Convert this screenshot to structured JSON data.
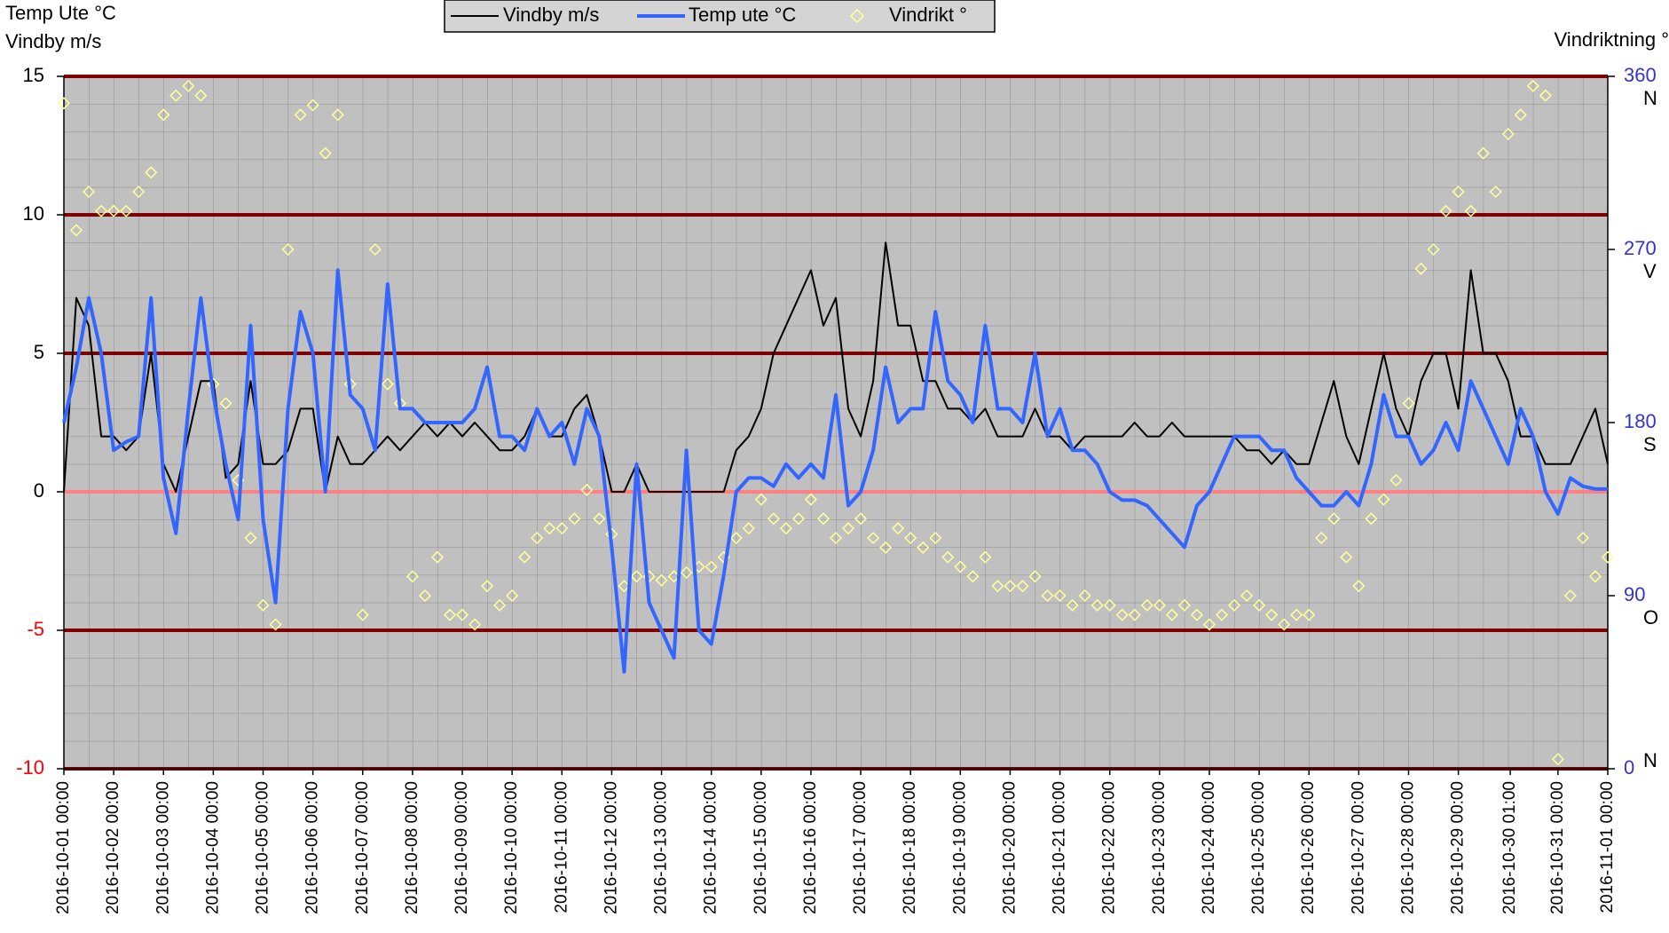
{
  "chart_data": {
    "type": "line",
    "y_axis_title_lines": [
      "Temp Ute °C",
      "Vindby m/s"
    ],
    "y2_axis_title": "Vindriktning °",
    "legend_position": "top",
    "xlim": [
      "2016-10-01 00:00",
      "2016-11-01 00:00"
    ],
    "xticks": [
      "2016-10-01 00:00",
      "2016-10-02 00:00",
      "2016-10-03 00:00",
      "2016-10-04 00:00",
      "2016-10-05 00:00",
      "2016-10-06 00:00",
      "2016-10-07 00:00",
      "2016-10-08 00:00",
      "2016-10-09 00:00",
      "2016-10-10 00:00",
      "2016-10-11 00:00",
      "2016-10-12 00:00",
      "2016-10-13 00:00",
      "2016-10-14 00:00",
      "2016-10-15 00:00",
      "2016-10-16 00:00",
      "2016-10-17 00:00",
      "2016-10-18 00:00",
      "2016-10-19 00:00",
      "2016-10-20 00:00",
      "2016-10-21 00:00",
      "2016-10-22 00:00",
      "2016-10-23 00:00",
      "2016-10-24 00:00",
      "2016-10-25 00:00",
      "2016-10-26 00:00",
      "2016-10-27 00:00",
      "2016-10-28 00:00",
      "2016-10-29 00:00",
      "2016-10-30 01:00",
      "2016-10-31 00:00",
      "2016-11-01 00:00"
    ],
    "ylim": [
      -10,
      15
    ],
    "yticks": [
      -10,
      -5,
      0,
      5,
      10,
      15
    ],
    "y2lim": [
      0,
      360
    ],
    "y2ticks": [
      0,
      90,
      180,
      270,
      360
    ],
    "y2_direction_labels": [
      {
        "value": 0,
        "label": "N"
      },
      {
        "value": 90,
        "label": "O"
      },
      {
        "value": 180,
        "label": "S"
      },
      {
        "value": 270,
        "label": "V"
      },
      {
        "value": 360,
        "label": "N"
      }
    ],
    "grid": true,
    "grid_color": "#800000",
    "zero_line_color": "#ff8080",
    "tick_color": "#000000",
    "negative_tick_color": "#ff0000",
    "y2_tick_color": "#3333cc",
    "plot_background": "#c0c0c0",
    "x": [
      "2016-10-01 00:00",
      "2016-10-01 06:00",
      "2016-10-01 12:00",
      "2016-10-01 18:00",
      "2016-10-02 00:00",
      "2016-10-02 06:00",
      "2016-10-02 12:00",
      "2016-10-02 18:00",
      "2016-10-03 00:00",
      "2016-10-03 06:00",
      "2016-10-03 12:00",
      "2016-10-03 18:00",
      "2016-10-04 00:00",
      "2016-10-04 06:00",
      "2016-10-04 12:00",
      "2016-10-04 18:00",
      "2016-10-05 00:00",
      "2016-10-05 06:00",
      "2016-10-05 12:00",
      "2016-10-05 18:00",
      "2016-10-06 00:00",
      "2016-10-06 06:00",
      "2016-10-06 12:00",
      "2016-10-06 18:00",
      "2016-10-07 00:00",
      "2016-10-07 06:00",
      "2016-10-07 12:00",
      "2016-10-07 18:00",
      "2016-10-08 00:00",
      "2016-10-08 06:00",
      "2016-10-08 12:00",
      "2016-10-08 18:00",
      "2016-10-09 00:00",
      "2016-10-09 06:00",
      "2016-10-09 12:00",
      "2016-10-09 18:00",
      "2016-10-10 00:00",
      "2016-10-10 06:00",
      "2016-10-10 12:00",
      "2016-10-10 18:00",
      "2016-10-11 00:00",
      "2016-10-11 06:00",
      "2016-10-11 12:00",
      "2016-10-11 18:00",
      "2016-10-12 00:00",
      "2016-10-12 06:00",
      "2016-10-12 12:00",
      "2016-10-12 18:00",
      "2016-10-13 00:00",
      "2016-10-13 06:00",
      "2016-10-13 12:00",
      "2016-10-13 18:00",
      "2016-10-14 00:00",
      "2016-10-14 06:00",
      "2016-10-14 12:00",
      "2016-10-14 18:00",
      "2016-10-15 00:00",
      "2016-10-15 06:00",
      "2016-10-15 12:00",
      "2016-10-15 18:00",
      "2016-10-16 00:00",
      "2016-10-16 06:00",
      "2016-10-16 12:00",
      "2016-10-16 18:00",
      "2016-10-17 00:00",
      "2016-10-17 06:00",
      "2016-10-17 12:00",
      "2016-10-17 18:00",
      "2016-10-18 00:00",
      "2016-10-18 06:00",
      "2016-10-18 12:00",
      "2016-10-18 18:00",
      "2016-10-19 00:00",
      "2016-10-19 06:00",
      "2016-10-19 12:00",
      "2016-10-19 18:00",
      "2016-10-20 00:00",
      "2016-10-20 06:00",
      "2016-10-20 12:00",
      "2016-10-20 18:00",
      "2016-10-21 00:00",
      "2016-10-21 06:00",
      "2016-10-21 12:00",
      "2016-10-21 18:00",
      "2016-10-22 00:00",
      "2016-10-22 06:00",
      "2016-10-22 12:00",
      "2016-10-22 18:00",
      "2016-10-23 00:00",
      "2016-10-23 06:00",
      "2016-10-23 12:00",
      "2016-10-23 18:00",
      "2016-10-24 00:00",
      "2016-10-24 06:00",
      "2016-10-24 12:00",
      "2016-10-24 18:00",
      "2016-10-25 00:00",
      "2016-10-25 06:00",
      "2016-10-25 12:00",
      "2016-10-25 18:00",
      "2016-10-26 00:00",
      "2016-10-26 06:00",
      "2016-10-26 12:00",
      "2016-10-26 18:00",
      "2016-10-27 00:00",
      "2016-10-27 06:00",
      "2016-10-27 12:00",
      "2016-10-27 18:00",
      "2016-10-28 00:00",
      "2016-10-28 06:00",
      "2016-10-28 12:00",
      "2016-10-28 18:00",
      "2016-10-29 00:00",
      "2016-10-29 06:00",
      "2016-10-29 12:00",
      "2016-10-29 18:00",
      "2016-10-30 00:00",
      "2016-10-30 06:00",
      "2016-10-30 12:00",
      "2016-10-30 18:00",
      "2016-10-31 00:00",
      "2016-10-31 06:00",
      "2016-10-31 12:00",
      "2016-10-31 18:00",
      "2016-11-01 00:00"
    ],
    "series": [
      {
        "name": "Vindby m/s",
        "color": "#000000",
        "kind": "line",
        "values": [
          0,
          7,
          6,
          2,
          2,
          1.5,
          2,
          5,
          1,
          0,
          2,
          4,
          4,
          0.5,
          1,
          4,
          1,
          1,
          1.5,
          3,
          3,
          0,
          2,
          1,
          1,
          1.5,
          2,
          1.5,
          2,
          2.5,
          2,
          2.5,
          2,
          2.5,
          2,
          1.5,
          1.5,
          2,
          3,
          2,
          2,
          3,
          3.5,
          2,
          0,
          0,
          1,
          0,
          0,
          0,
          0,
          0,
          0,
          0,
          1.5,
          2,
          3,
          5,
          6,
          7,
          8,
          6,
          7,
          3,
          2,
          4,
          9,
          6,
          6,
          4,
          4,
          3,
          3,
          2.5,
          3,
          2,
          2,
          2,
          3,
          2,
          2,
          1.5,
          2,
          2,
          2,
          2,
          2.5,
          2,
          2,
          2.5,
          2,
          2,
          2,
          2,
          2,
          1.5,
          1.5,
          1,
          1.5,
          1,
          1,
          2.5,
          4,
          2,
          1,
          3,
          5,
          3,
          2,
          4,
          5,
          5,
          3,
          8,
          5,
          5,
          4,
          2,
          2,
          1,
          1,
          1,
          2,
          3,
          1
        ]
      },
      {
        "name": "Temp ute °C",
        "color": "#3366ff",
        "kind": "line",
        "values": [
          2.5,
          4.5,
          7,
          5,
          1.5,
          1.8,
          2,
          7,
          0.5,
          -1.5,
          3,
          7,
          3.5,
          1,
          -1,
          6,
          -1,
          -4,
          3,
          6.5,
          5,
          0,
          8,
          3.5,
          3,
          1.5,
          7.5,
          3,
          3,
          2.5,
          2.5,
          2.5,
          2.5,
          3,
          4.5,
          2,
          2,
          1.5,
          3,
          2,
          2.5,
          1,
          3,
          2,
          -2,
          -6.5,
          1,
          -4,
          -5,
          -6,
          1.5,
          -5,
          -5.5,
          -3,
          0,
          0.5,
          0.5,
          0.2,
          1,
          0.5,
          1,
          0.5,
          3.5,
          -0.5,
          0,
          1.5,
          4.5,
          2.5,
          3,
          3,
          6.5,
          4,
          3.5,
          2.5,
          6,
          3,
          3,
          2.5,
          5,
          2,
          3,
          1.5,
          1.5,
          1,
          0,
          -0.3,
          -0.3,
          -0.5,
          -1,
          -1.5,
          -2,
          -0.5,
          0,
          1,
          2,
          2,
          2,
          1.5,
          1.5,
          0.5,
          0,
          -0.5,
          -0.5,
          0,
          -0.5,
          1,
          3.5,
          2,
          2,
          1,
          1.5,
          2.5,
          1.5,
          4,
          3,
          2,
          1,
          3,
          2,
          0,
          -0.8,
          0.5,
          0.2,
          0.1,
          0.1
        ]
      },
      {
        "name": "Vindrikt °",
        "color": "#ffff99",
        "kind": "scatter",
        "axis": "y2",
        "values": [
          346,
          280,
          300,
          290,
          290,
          290,
          300,
          310,
          340,
          350,
          355,
          350,
          200,
          190,
          150,
          120,
          85,
          75,
          270,
          340,
          345,
          320,
          340,
          200,
          80,
          270,
          200,
          190,
          100,
          90,
          110,
          80,
          80,
          75,
          95,
          85,
          90,
          110,
          120,
          125,
          125,
          130,
          145,
          130,
          122,
          95,
          100,
          100,
          98,
          100,
          102,
          105,
          105,
          110,
          120,
          125,
          140,
          130,
          125,
          130,
          140,
          130,
          120,
          125,
          130,
          120,
          115,
          125,
          120,
          115,
          120,
          110,
          105,
          100,
          110,
          95,
          95,
          95,
          100,
          90,
          90,
          85,
          90,
          85,
          85,
          80,
          80,
          85,
          85,
          80,
          85,
          80,
          75,
          80,
          85,
          90,
          85,
          80,
          75,
          80,
          80,
          120,
          130,
          110,
          95,
          130,
          140,
          150,
          190,
          260,
          270,
          290,
          300,
          290,
          320,
          300,
          330,
          340,
          355,
          350,
          5,
          90,
          120,
          100,
          110
        ]
      }
    ]
  }
}
